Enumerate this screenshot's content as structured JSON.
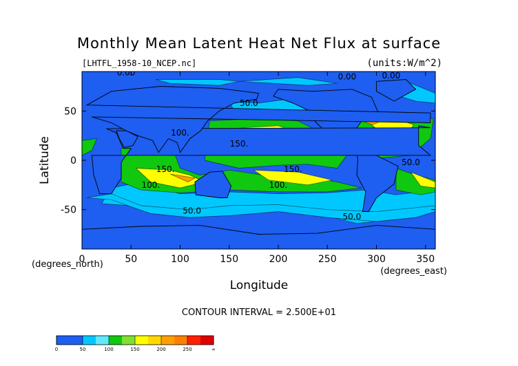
{
  "chart_data": {
    "type": "heatmap",
    "title": "Monthly Mean Latent Heat Net Flux at surface",
    "file_label": "[LHTFL_1958-10_NCEP.nc]",
    "units_label": "(units:W/m^2)",
    "xlabel": "Longitude",
    "ylabel": "Latitude",
    "x_unit_label": "(degrees_east)",
    "y_unit_label": "(degrees_north)",
    "xlim": [
      0,
      360
    ],
    "ylim": [
      -90,
      90
    ],
    "x_ticks": [
      0,
      50,
      100,
      150,
      200,
      250,
      300,
      350
    ],
    "y_ticks": [
      -50,
      0,
      50
    ],
    "contour_interval_text": "CONTOUR INTERVAL = 2.500E+01",
    "contour_labels": [
      {
        "text": "0.00",
        "lon": 45,
        "lat": 86
      },
      {
        "text": "0.00",
        "lon": 270,
        "lat": 82
      },
      {
        "text": "0.00",
        "lon": 315,
        "lat": 83
      },
      {
        "text": "50.0",
        "lon": 170,
        "lat": 55
      },
      {
        "text": "100.",
        "lon": 100,
        "lat": 25
      },
      {
        "text": "150.",
        "lon": 160,
        "lat": 14
      },
      {
        "text": "150.",
        "lon": 85,
        "lat": -12
      },
      {
        "text": "150.",
        "lon": 215,
        "lat": -12
      },
      {
        "text": "100.",
        "lon": 70,
        "lat": -28
      },
      {
        "text": "100.",
        "lon": 200,
        "lat": -28
      },
      {
        "text": "50.0",
        "lon": 112,
        "lat": -54
      },
      {
        "text": "50.0",
        "lon": 275,
        "lat": -60
      },
      {
        "text": "50.0",
        "lon": 335,
        "lat": -5
      }
    ],
    "colorbar": {
      "levels": [
        0,
        25,
        50,
        75,
        100,
        125,
        150,
        175,
        200,
        225,
        250,
        275
      ],
      "colors": [
        "#1e5ef0",
        "#1e5ef0",
        "#00c8ff",
        "#60e8ff",
        "#10c810",
        "#80e030",
        "#ffff00",
        "#ffd800",
        "#ffa000",
        "#ff8000",
        "#ff2000",
        "#e00000"
      ],
      "tick_labels": [
        "0",
        "50",
        "100",
        "150",
        "200",
        "250",
        "∞"
      ]
    }
  }
}
